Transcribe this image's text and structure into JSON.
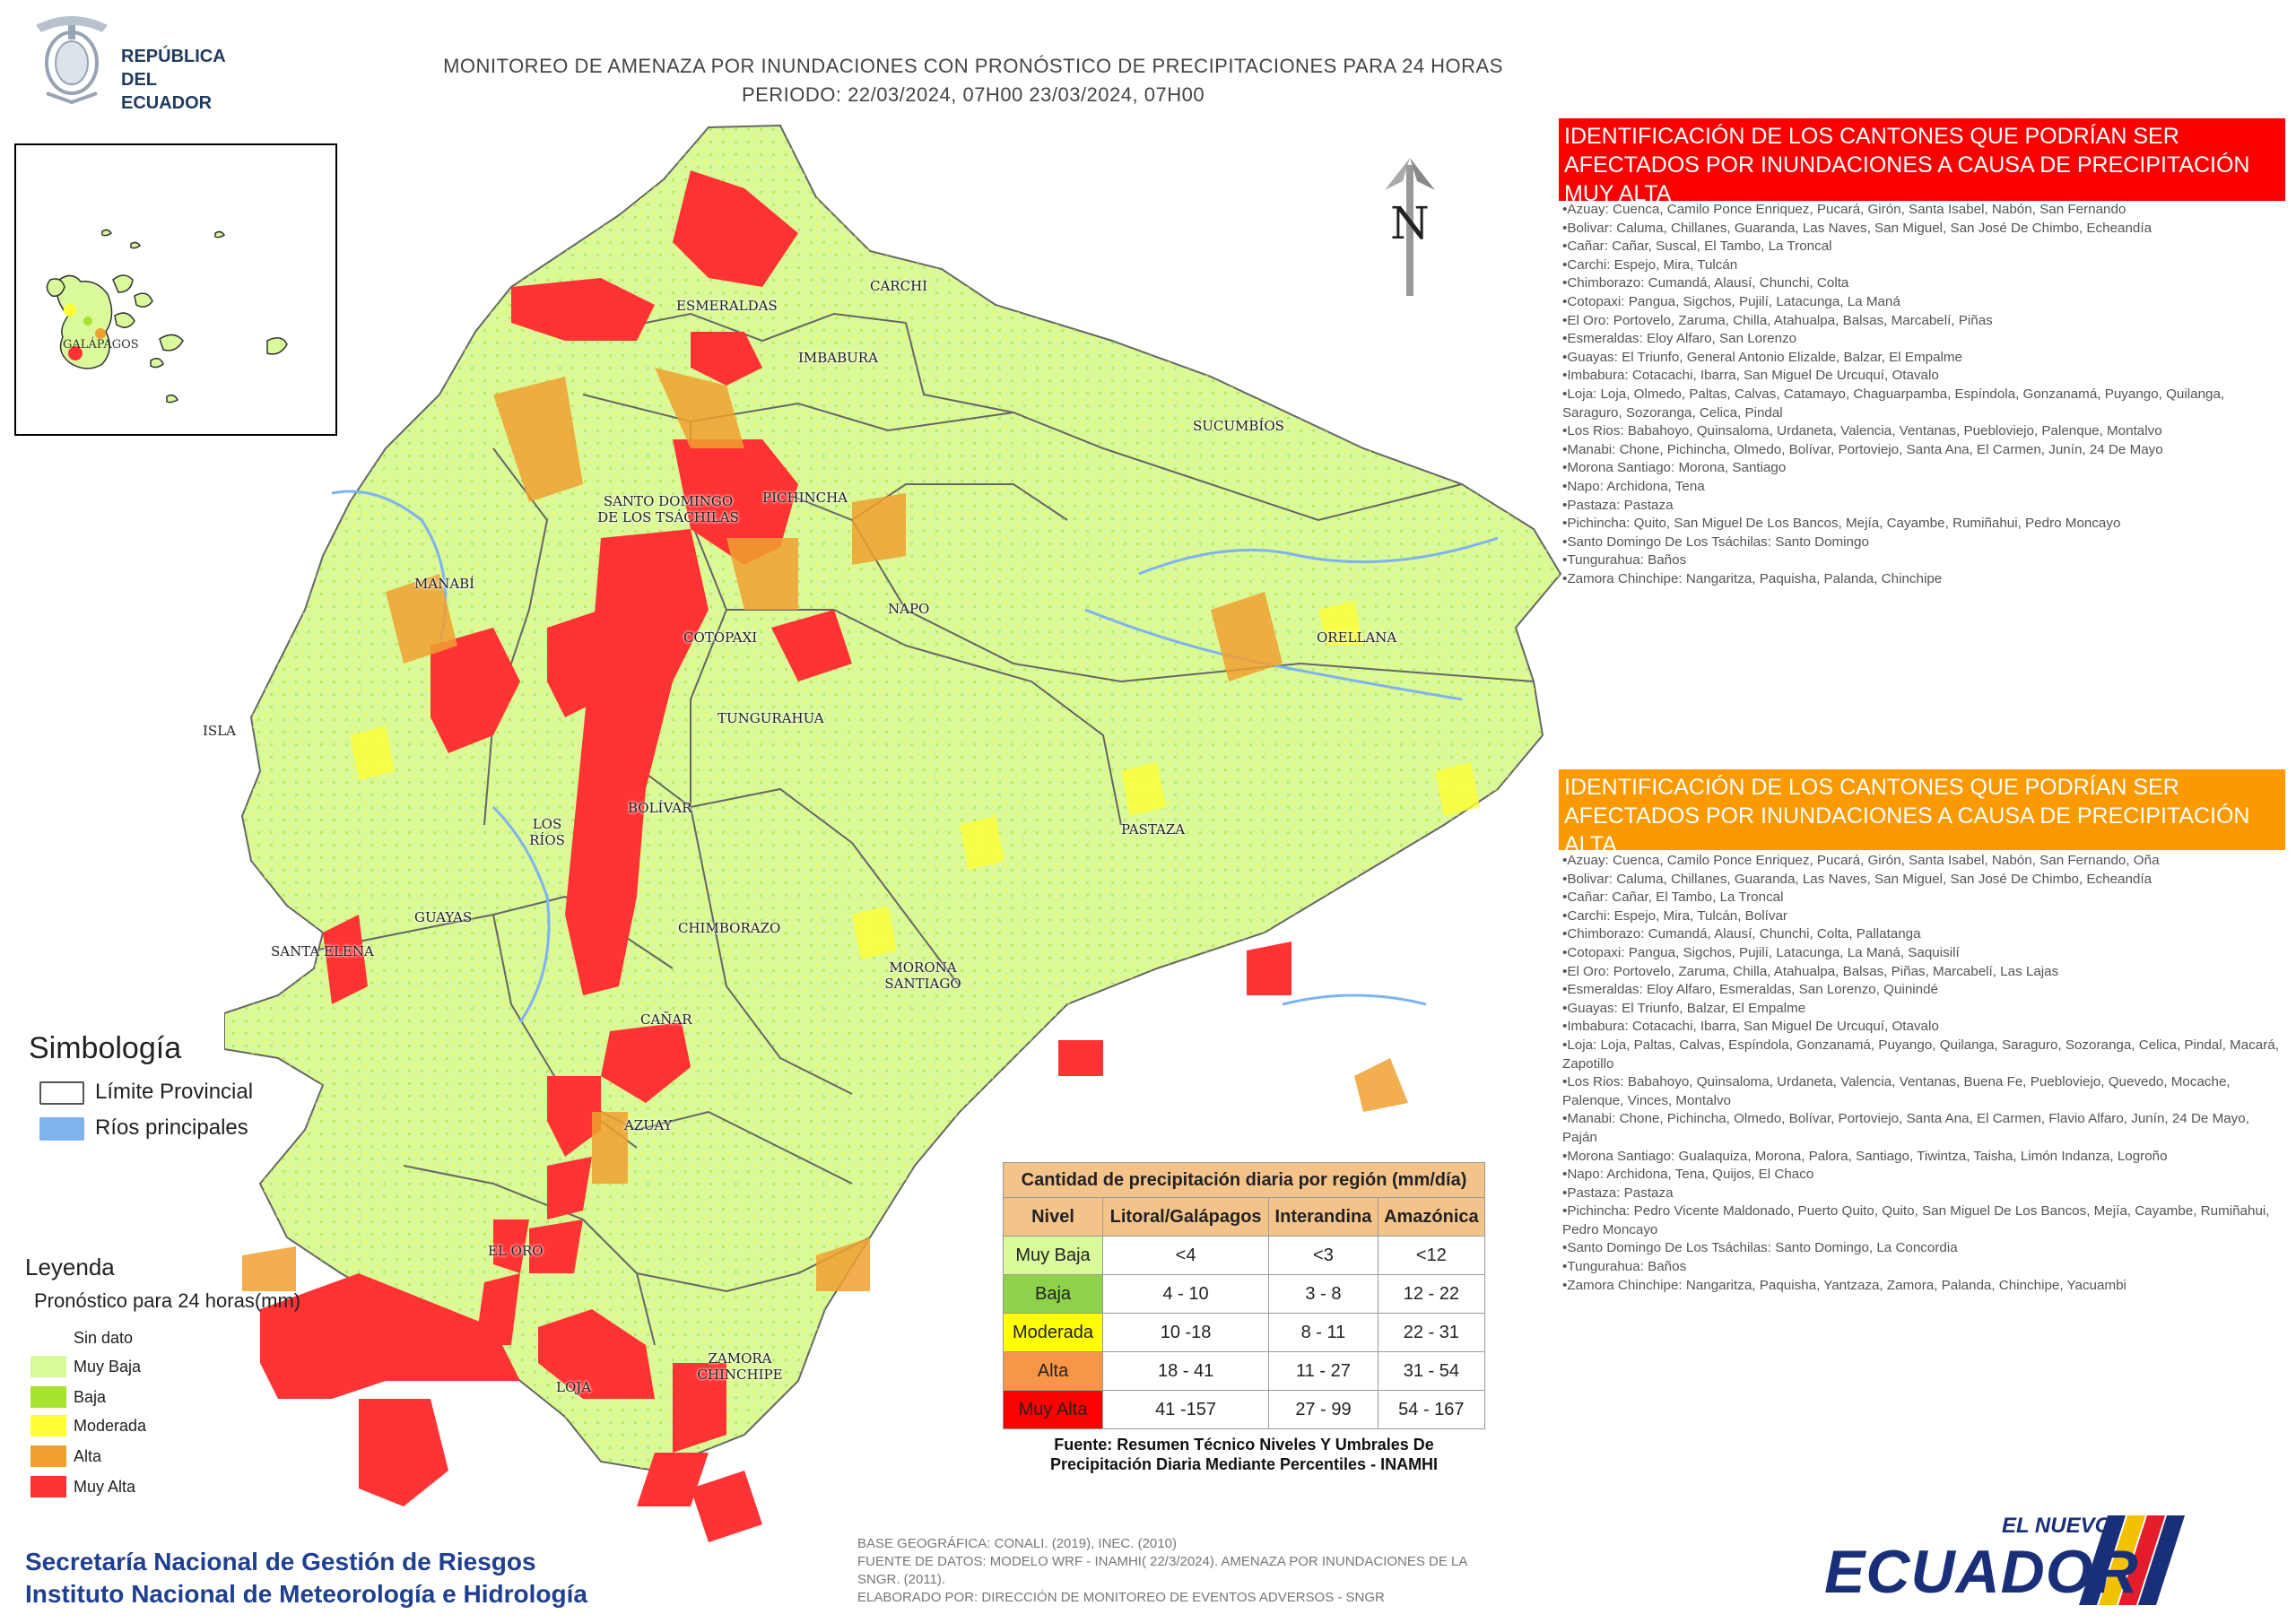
{
  "header": {
    "gov_line1": "REPÚBLICA",
    "gov_line2": "DEL ECUADOR",
    "title_line1": "MONITOREO DE AMENAZA POR INUNDACIONES  CON PRONÓSTICO DE  PRECIPITACIONES PARA 24 HORAS",
    "title_line2": "PERIODO: 22/03/2024, 07H00 23/03/2024, 07H00"
  },
  "inset": {
    "label": "GALÁPAGOS"
  },
  "map": {
    "north_letter": "N",
    "provinces": {
      "esmeraldas": "ESMERALDAS",
      "carchi": "CARCHI",
      "imbabura": "IMBABURA",
      "sucumbios": "SUCUMBÍOS",
      "santo_domingo": "SANTO DOMINGO DE LOS TSÁCHILAS",
      "pichincha": "PICHINCHA",
      "manabi": "MANABÍ",
      "napo": "NAPO",
      "orellana": "ORELLANA",
      "cotopaxi": "COTOPAXI",
      "isla": "ISLA",
      "tungurahua": "TUNGURAHUA",
      "bolivar": "BOLÍVAR",
      "los_rios": "LOS RÍOS",
      "pastaza": "PASTAZA",
      "guayas": "GUAYAS",
      "chimborazo": "CHIMBORAZO",
      "santa_elena": "SANTA ELENA",
      "morona": "MORONA SANTIAGO",
      "canar": "CAÑAR",
      "azuay": "AZUAY",
      "el_oro": "EL ORO",
      "loja": "LOJA",
      "zamora": "ZAMORA CHINCHIPE"
    }
  },
  "panels": {
    "red": {
      "heading": "IDENTIFICACIÓN DE LOS CANTONES QUE PODRÍAN SER AFECTADOS POR INUNDACIONES  A CAUSA DE PRECIPITACIÓN MUY ALTA",
      "color": "#fb0000",
      "items": [
        "Azuay: Cuenca, Camilo Ponce Enriquez, Pucará, Girón, Santa Isabel, Nabón, San Fernando",
        "Bolivar: Caluma, Chillanes, Guaranda, Las Naves, San Miguel, San José De Chimbo, Echeandía",
        "Cañar: Cañar, Suscal, El Tambo, La Troncal",
        "Carchi: Espejo, Mira, Tulcán",
        "Chimborazo: Cumandá, Alausí, Chunchi, Colta",
        "Cotopaxi: Pangua, Sigchos, Pujilí, Latacunga, La Maná",
        "El Oro: Portovelo, Zaruma, Chilla, Atahualpa, Balsas, Marcabelí, Piñas",
        "Esmeraldas: Eloy Alfaro, San Lorenzo",
        "Guayas: El Triunfo, General Antonio Elizalde, Balzar, El Empalme",
        "Imbabura: Cotacachi, Ibarra, San Miguel De Urcuquí, Otavalo",
        "Loja: Loja, Olmedo, Paltas, Calvas, Catamayo, Chaguarpamba, Espíndola, Gonzanamá, Puyango, Quilanga, Saraguro, Sozoranga, Celica, Pindal",
        "Los Rios: Babahoyo, Quinsaloma, Urdaneta, Valencia, Ventanas, Puebloviejo, Palenque, Montalvo",
        "Manabi: Chone, Pichincha, Olmedo, Bolívar, Portoviejo, Santa Ana, El Carmen, Junín, 24 De Mayo",
        "Morona Santiago: Morona, Santiago",
        "Napo: Archidona, Tena",
        "Pastaza: Pastaza",
        "Pichincha: Quito, San Miguel De Los Bancos, Mejía, Cayambe, Rumiñahui, Pedro Moncayo",
        "Santo Domingo De Los Tsáchilas: Santo Domingo",
        "Tungurahua: Baños",
        "Zamora Chinchipe: Nangaritza, Paquisha, Palanda, Chinchipe"
      ]
    },
    "orange": {
      "heading": "IDENTIFICACIÓN DE LOS CANTONES QUE  PODRÍAN SER AFECTADOS POR INUNDACIONES  A CAUSA DE PRECIPITACIÓN  ALTA",
      "color": "#fb9900",
      "items": [
        "Azuay: Cuenca, Camilo Ponce Enriquez, Pucará, Girón, Santa Isabel, Nabón, San Fernando, Oña",
        "Bolivar: Caluma, Chillanes, Guaranda, Las Naves, San Miguel, San José De Chimbo, Echeandía",
        "Cañar: Cañar, El Tambo, La Troncal",
        "Carchi: Espejo, Mira, Tulcán, Bolívar",
        "Chimborazo: Cumandá, Alausí, Chunchi, Colta, Pallatanga",
        "Cotopaxi: Pangua, Sigchos, Pujilí, Latacunga, La Maná, Saquisilí",
        "El Oro: Portovelo, Zaruma, Chilla, Atahualpa, Balsas, Piñas, Marcabelí, Las Lajas",
        "Esmeraldas: Eloy Alfaro, Esmeraldas, San Lorenzo, Quinindé",
        "Guayas: El Triunfo, Balzar, El Empalme",
        "Imbabura: Cotacachi, Ibarra, San Miguel De Urcuquí, Otavalo",
        "Loja: Loja, Paltas, Calvas, Espíndola, Gonzanamá, Puyango, Quilanga, Saraguro, Sozoranga, Celica, Pindal, Macará, Zapotillo",
        "Los Rios: Babahoyo, Quinsaloma, Urdaneta, Valencia, Ventanas, Buena Fe, Puebloviejo, Quevedo, Mocache, Palenque, Vinces, Montalvo",
        "Manabi: Chone, Pichincha, Olmedo, Bolívar, Portoviejo, Santa Ana, El Carmen, Flavio Alfaro, Junín, 24 De Mayo, Paján",
        "Morona Santiago: Gualaquiza, Morona, Palora, Santiago, Tiwintza, Taisha, Limón Indanza, Logroño",
        "Napo: Archidona, Tena, Quijos, El Chaco",
        "Pastaza: Pastaza",
        "Pichincha: Pedro Vicente Maldonado, Puerto Quito, Quito, San Miguel De Los Bancos, Mejía, Cayambe, Rumiñahui, Pedro Moncayo",
        "Santo Domingo De Los Tsáchilas: Santo Domingo, La Concordia",
        "Tungurahua: Baños",
        "Zamora Chinchipe: Nangaritza, Paquisha, Yantzaza, Zamora, Palanda, Chinchipe, Yacuambi"
      ]
    }
  },
  "symbology": {
    "title": "Simbología",
    "items": [
      {
        "label": "Límite Provincial",
        "color": "#ffffff",
        "border": "#555555"
      },
      {
        "label": "Ríos principales",
        "color": "#7fb3f0",
        "border": "#7fb3f0"
      }
    ]
  },
  "legend": {
    "title": "Leyenda",
    "subtitle": "Pronóstico para 24 horas(mm)",
    "items": [
      {
        "label": "Sin dato",
        "color": "#ffffff"
      },
      {
        "label": "Muy Baja",
        "color": "#d9f99a"
      },
      {
        "label": "Baja",
        "color": "#a6e22e"
      },
      {
        "label": "Moderada",
        "color": "#ffff33"
      },
      {
        "label": "Alta",
        "color": "#f0a030"
      },
      {
        "label": "Muy Alta",
        "color": "#ff3333"
      }
    ]
  },
  "table": {
    "caption": "Cantidad de precipitación diaria por región (mm/día)",
    "headers": [
      "Nivel",
      "Litoral/Galápagos",
      "Interandina",
      "Amazónica"
    ],
    "rows": [
      {
        "level": "Muy Baja",
        "color": "#d9f99a",
        "litoral": "<4",
        "interandina": "<3",
        "amazonica": "<12"
      },
      {
        "level": "Baja",
        "color": "#8ed14b",
        "litoral": "4 - 10",
        "interandina": "3 - 8",
        "amazonica": "12 - 22"
      },
      {
        "level": "Moderada",
        "color": "#ffff00",
        "litoral": "10 -18",
        "interandina": "8 - 11",
        "amazonica": "22 - 31"
      },
      {
        "level": "Alta",
        "color": "#f79646",
        "litoral": "18 - 41",
        "interandina": "11 - 27",
        "amazonica": "31 - 54"
      },
      {
        "level": "Muy Alta",
        "color": "#ff0000",
        "litoral": "41 -157",
        "interandina": "27 - 99",
        "amazonica": "54 - 167"
      }
    ],
    "source_line1": "Fuente: Resumen Técnico Niveles Y Umbrales De",
    "source_line2": "Precipitación Diaria Mediante Percentiles - INAMHI"
  },
  "footer": {
    "inst_line1": "Secretaría Nacional de Gestión de Riesgos",
    "inst_line2": "Instituto Nacional de Meteorología e Hidrología",
    "meta_line1": "Base geográfica: CONALI. (2019), INEC. (2010)",
    "meta_line2": "Fuente de datos: Modelo WRF - INAMHI( 22/3/2024).  Amenaza por inundaciones de la SNGR. (2011).",
    "meta_line3": "Elaborado por: Dirección de Monitoreo de Eventos Adversos - SNGR",
    "logo_top": "EL NUEVO",
    "logo_main": "ECUADOR"
  }
}
